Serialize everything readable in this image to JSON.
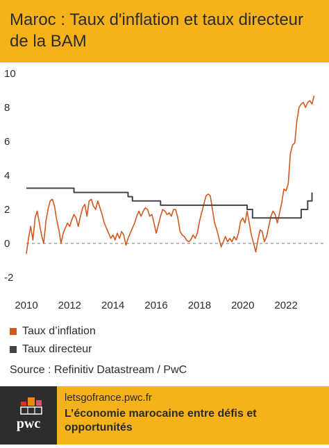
{
  "header": {
    "title": "Maroc : Taux d'inflation et taux directeur de la BAM"
  },
  "chart_data": {
    "type": "line",
    "title": "Maroc : Taux d'inflation et taux directeur de la BAM",
    "xlabel": "",
    "ylabel": "",
    "xlim": [
      2010,
      2023.6
    ],
    "ylim": [
      -2,
      10
    ],
    "yticks": [
      "10",
      "8",
      "6",
      "4",
      "2",
      "0",
      "-2"
    ],
    "ytick_values": [
      10,
      8,
      6,
      4,
      2,
      0,
      -2
    ],
    "xticks": [
      "2010",
      "2012",
      "2014",
      "2016",
      "2018",
      "2020",
      "2022"
    ],
    "xtick_values": [
      2010,
      2012,
      2014,
      2016,
      2018,
      2020,
      2022
    ],
    "zero_line": "dashed",
    "grid": false,
    "legend_position": "bottom-left",
    "series": [
      {
        "name": "Taux d’inflation",
        "color": "#d4571c",
        "points": [
          [
            2010.0,
            -0.6
          ],
          [
            2010.1,
            0.3
          ],
          [
            2010.2,
            1.0
          ],
          [
            2010.3,
            0.2
          ],
          [
            2010.4,
            1.5
          ],
          [
            2010.5,
            1.9
          ],
          [
            2010.6,
            1.2
          ],
          [
            2010.7,
            0.5
          ],
          [
            2010.8,
            0.0
          ],
          [
            2010.9,
            1.3
          ],
          [
            2011.0,
            2.0
          ],
          [
            2011.1,
            2.5
          ],
          [
            2011.2,
            2.6
          ],
          [
            2011.3,
            2.2
          ],
          [
            2011.4,
            1.4
          ],
          [
            2011.5,
            0.8
          ],
          [
            2011.6,
            0.0
          ],
          [
            2011.7,
            0.6
          ],
          [
            2011.8,
            0.9
          ],
          [
            2011.9,
            1.2
          ],
          [
            2012.0,
            1.0
          ],
          [
            2012.1,
            1.4
          ],
          [
            2012.2,
            1.7
          ],
          [
            2012.3,
            1.5
          ],
          [
            2012.4,
            1.0
          ],
          [
            2012.5,
            1.6
          ],
          [
            2012.6,
            2.1
          ],
          [
            2012.7,
            2.3
          ],
          [
            2012.8,
            1.6
          ],
          [
            2012.9,
            2.5
          ],
          [
            2013.0,
            2.6
          ],
          [
            2013.1,
            2.2
          ],
          [
            2013.2,
            2.0
          ],
          [
            2013.3,
            2.5
          ],
          [
            2013.4,
            2.1
          ],
          [
            2013.5,
            1.7
          ],
          [
            2013.6,
            1.2
          ],
          [
            2013.7,
            0.9
          ],
          [
            2013.8,
            0.6
          ],
          [
            2013.9,
            0.3
          ],
          [
            2014.0,
            0.5
          ],
          [
            2014.1,
            0.2
          ],
          [
            2014.2,
            0.6
          ],
          [
            2014.3,
            0.3
          ],
          [
            2014.4,
            0.7
          ],
          [
            2014.5,
            0.5
          ],
          [
            2014.6,
            -0.1
          ],
          [
            2014.7,
            0.3
          ],
          [
            2014.8,
            0.6
          ],
          [
            2014.9,
            0.9
          ],
          [
            2015.0,
            1.2
          ],
          [
            2015.1,
            1.6
          ],
          [
            2015.2,
            1.9
          ],
          [
            2015.3,
            1.6
          ],
          [
            2015.4,
            1.9
          ],
          [
            2015.5,
            2.1
          ],
          [
            2015.6,
            2.0
          ],
          [
            2015.7,
            1.6
          ],
          [
            2015.8,
            1.7
          ],
          [
            2015.9,
            1.2
          ],
          [
            2016.0,
            0.6
          ],
          [
            2016.1,
            1.1
          ],
          [
            2016.2,
            1.6
          ],
          [
            2016.3,
            2.0
          ],
          [
            2016.4,
            1.9
          ],
          [
            2016.5,
            1.7
          ],
          [
            2016.6,
            1.8
          ],
          [
            2016.7,
            1.6
          ],
          [
            2016.8,
            2.0
          ],
          [
            2016.9,
            2.0
          ],
          [
            2017.0,
            1.5
          ],
          [
            2017.1,
            0.7
          ],
          [
            2017.2,
            0.5
          ],
          [
            2017.3,
            0.4
          ],
          [
            2017.4,
            0.2
          ],
          [
            2017.5,
            0.1
          ],
          [
            2017.6,
            0.2
          ],
          [
            2017.7,
            0.5
          ],
          [
            2017.8,
            0.3
          ],
          [
            2017.9,
            0.6
          ],
          [
            2018.0,
            1.3
          ],
          [
            2018.1,
            1.8
          ],
          [
            2018.2,
            2.3
          ],
          [
            2018.3,
            2.8
          ],
          [
            2018.4,
            2.9
          ],
          [
            2018.5,
            2.8
          ],
          [
            2018.6,
            2.0
          ],
          [
            2018.7,
            1.2
          ],
          [
            2018.8,
            0.8
          ],
          [
            2018.9,
            0.3
          ],
          [
            2019.0,
            -0.2
          ],
          [
            2019.1,
            0.1
          ],
          [
            2019.2,
            0.4
          ],
          [
            2019.3,
            0.1
          ],
          [
            2019.4,
            0.3
          ],
          [
            2019.5,
            0.1
          ],
          [
            2019.6,
            0.4
          ],
          [
            2019.7,
            0.2
          ],
          [
            2019.8,
            0.6
          ],
          [
            2019.9,
            1.3
          ],
          [
            2020.0,
            1.5
          ],
          [
            2020.1,
            1.2
          ],
          [
            2020.2,
            1.9
          ],
          [
            2020.3,
            1.2
          ],
          [
            2020.4,
            0.5
          ],
          [
            2020.5,
            0.0
          ],
          [
            2020.6,
            -0.5
          ],
          [
            2020.7,
            0.2
          ],
          [
            2020.8,
            0.8
          ],
          [
            2020.9,
            0.7
          ],
          [
            2021.0,
            0.1
          ],
          [
            2021.1,
            0.4
          ],
          [
            2021.2,
            1.0
          ],
          [
            2021.3,
            1.6
          ],
          [
            2021.4,
            1.9
          ],
          [
            2021.5,
            1.7
          ],
          [
            2021.6,
            1.2
          ],
          [
            2021.7,
            1.8
          ],
          [
            2021.8,
            2.4
          ],
          [
            2021.9,
            3.2
          ],
          [
            2022.0,
            3.1
          ],
          [
            2022.1,
            3.5
          ],
          [
            2022.2,
            5.3
          ],
          [
            2022.3,
            5.8
          ],
          [
            2022.4,
            5.9
          ],
          [
            2022.5,
            7.2
          ],
          [
            2022.6,
            8.0
          ],
          [
            2022.7,
            8.2
          ],
          [
            2022.8,
            8.3
          ],
          [
            2022.9,
            8.0
          ],
          [
            2023.0,
            8.3
          ],
          [
            2023.1,
            8.4
          ],
          [
            2023.2,
            8.2
          ],
          [
            2023.3,
            8.7
          ]
        ]
      },
      {
        "name": "Taux directeur",
        "color": "#444444",
        "points": [
          [
            2010.0,
            3.25
          ],
          [
            2012.2,
            3.25
          ],
          [
            2012.2,
            3.0
          ],
          [
            2014.7,
            3.0
          ],
          [
            2014.7,
            2.75
          ],
          [
            2014.9,
            2.75
          ],
          [
            2014.9,
            2.5
          ],
          [
            2016.2,
            2.5
          ],
          [
            2016.2,
            2.25
          ],
          [
            2020.2,
            2.25
          ],
          [
            2020.2,
            2.0
          ],
          [
            2020.45,
            2.0
          ],
          [
            2020.45,
            1.5
          ],
          [
            2022.7,
            1.5
          ],
          [
            2022.7,
            2.0
          ],
          [
            2023.0,
            2.0
          ],
          [
            2023.0,
            2.5
          ],
          [
            2023.2,
            2.5
          ],
          [
            2023.2,
            3.0
          ]
        ]
      }
    ]
  },
  "legend": {
    "items": [
      {
        "label": "Taux d’inflation",
        "color": "#d4571c"
      },
      {
        "label": "Taux directeur",
        "color": "#444444"
      }
    ]
  },
  "source": "Source : Refinitiv Datastream / PwC",
  "footer": {
    "url": "letsgofrance.pwc.fr",
    "title": "L’économie marocaine entre défis et opportunités",
    "logo_text": "pwc"
  }
}
